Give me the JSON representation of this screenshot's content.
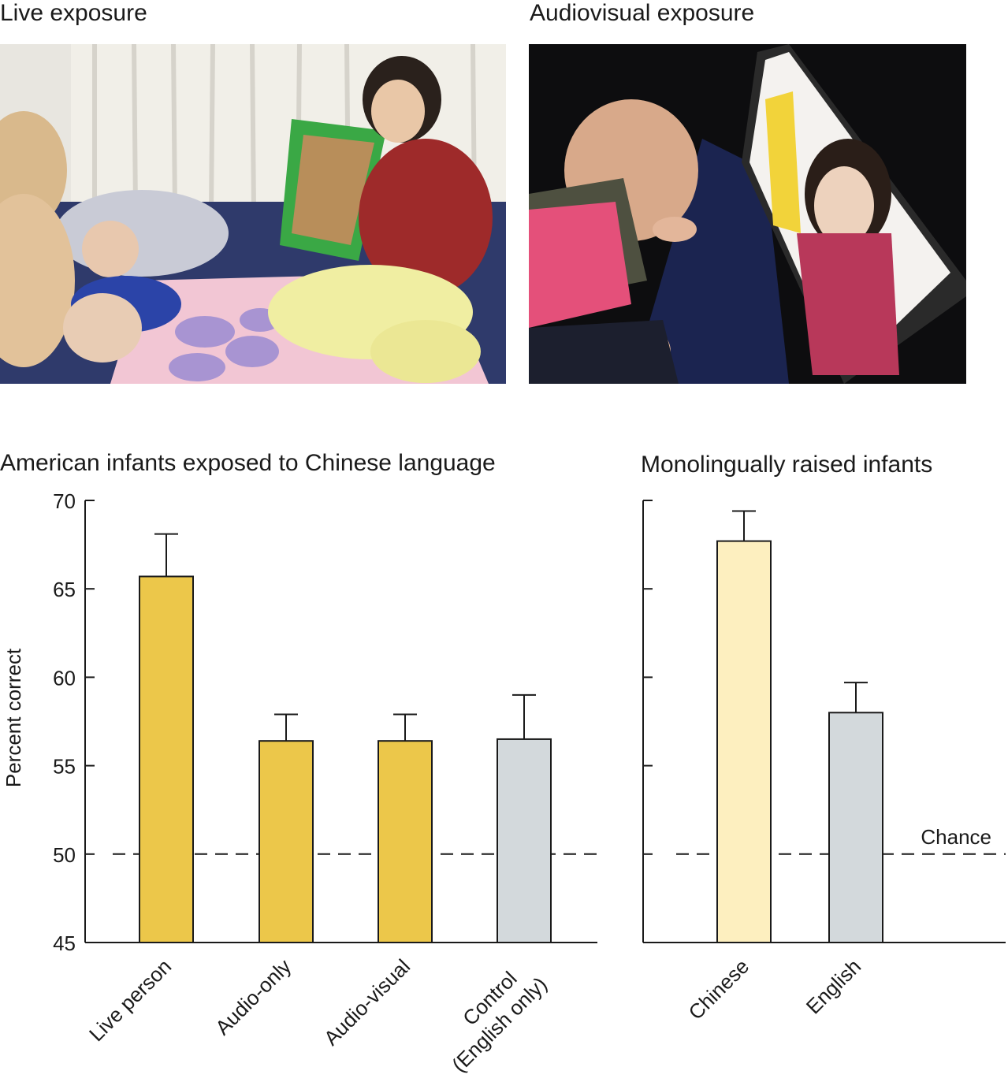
{
  "photos": {
    "live": {
      "title": "Live exposure"
    },
    "audiovisual": {
      "title": "Audiovisual exposure"
    }
  },
  "chart_data": [
    {
      "type": "bar",
      "title": "American infants exposed to Chinese language",
      "ylabel": "Percent correct",
      "ylim": [
        45,
        70
      ],
      "yticks": [
        45,
        50,
        55,
        60,
        65,
        70
      ],
      "categories": [
        "Live person",
        "Audio-only",
        "Audio-visual",
        "Control (English only)"
      ],
      "values": [
        65.7,
        56.4,
        56.4,
        56.5
      ],
      "error_plus": [
        2.4,
        1.5,
        1.5,
        2.5
      ],
      "colors": [
        "#ecc74a",
        "#ecc74a",
        "#ecc74a",
        "#d3d9dc"
      ],
      "reference_line": {
        "value": 50
      }
    },
    {
      "type": "bar",
      "title": "Monolingually raised infants",
      "ylim": [
        45,
        70
      ],
      "categories": [
        "Chinese",
        "English"
      ],
      "values": [
        67.7,
        58.0
      ],
      "error_plus": [
        1.7,
        1.7
      ],
      "colors": [
        "#fdefbf",
        "#d3d9dc"
      ],
      "reference_line": {
        "value": 50,
        "label": "Chance"
      }
    }
  ],
  "colors": {
    "axis": "#1a1a1a",
    "bar_outline": "#1a1a1a"
  }
}
